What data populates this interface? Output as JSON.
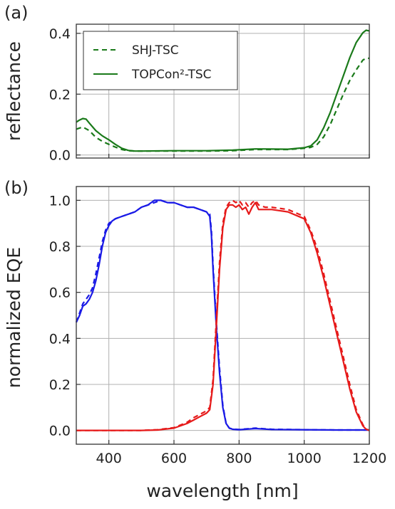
{
  "chart_data": [
    {
      "type": "line",
      "panel_label": "(a)",
      "xlabel": "",
      "ylabel": "reflectance",
      "xlim": [
        300,
        1200
      ],
      "ylim": [
        -0.01,
        0.43
      ],
      "xticks": [
        400,
        600,
        800,
        1000,
        1200
      ],
      "yticks": [
        "0.0",
        "0.2",
        "0.4"
      ],
      "ytick_values": [
        0.0,
        0.2,
        0.4
      ],
      "grid": true,
      "legend_position": "top-left",
      "series": [
        {
          "name": "SHJ-TSC",
          "style": "dashed",
          "color": "#1a7a1a",
          "x": [
            300,
            320,
            340,
            360,
            380,
            400,
            420,
            440,
            460,
            480,
            500,
            600,
            700,
            780,
            850,
            950,
            1000,
            1020,
            1040,
            1060,
            1080,
            1100,
            1120,
            1140,
            1160,
            1180,
            1190,
            1200
          ],
          "y": [
            0.085,
            0.092,
            0.08,
            0.058,
            0.045,
            0.035,
            0.026,
            0.018,
            0.014,
            0.013,
            0.013,
            0.013,
            0.013,
            0.014,
            0.018,
            0.018,
            0.022,
            0.025,
            0.035,
            0.06,
            0.1,
            0.15,
            0.2,
            0.245,
            0.28,
            0.312,
            0.318,
            0.318
          ]
        },
        {
          "name": "TOPCon²-TSC",
          "style": "solid",
          "color": "#1a7a1a",
          "x": [
            300,
            310,
            320,
            330,
            340,
            360,
            380,
            400,
            420,
            440,
            460,
            480,
            500,
            600,
            700,
            780,
            850,
            950,
            1000,
            1020,
            1040,
            1060,
            1080,
            1100,
            1120,
            1140,
            1160,
            1180,
            1190,
            1200
          ],
          "y": [
            0.108,
            0.115,
            0.12,
            0.118,
            0.105,
            0.08,
            0.063,
            0.05,
            0.035,
            0.022,
            0.015,
            0.013,
            0.013,
            0.014,
            0.014,
            0.016,
            0.02,
            0.019,
            0.024,
            0.03,
            0.05,
            0.09,
            0.14,
            0.2,
            0.26,
            0.32,
            0.37,
            0.402,
            0.41,
            0.408
          ]
        }
      ]
    },
    {
      "type": "line",
      "panel_label": "(b)",
      "xlabel": "wavelength [nm]",
      "ylabel": "normalized EQE",
      "xlim": [
        300,
        1200
      ],
      "ylim": [
        -0.06,
        1.06
      ],
      "xticks": [
        400,
        600,
        800,
        1000,
        1200
      ],
      "yticks": [
        "0.0",
        "0.2",
        "0.4",
        "0.6",
        "0.8",
        "1.0"
      ],
      "ytick_values": [
        0.0,
        0.2,
        0.4,
        0.6,
        0.8,
        1.0
      ],
      "grid": true,
      "series": [
        {
          "style": "solid",
          "color": "#1a1ae6",
          "x": [
            300,
            310,
            320,
            330,
            340,
            350,
            360,
            370,
            380,
            390,
            400,
            410,
            420,
            440,
            460,
            480,
            500,
            520,
            540,
            560,
            580,
            600,
            620,
            640,
            660,
            680,
            700,
            710,
            715,
            720,
            730,
            740,
            750,
            760,
            770,
            780,
            800,
            850,
            900,
            1000,
            1100,
            1200
          ],
          "y": [
            0.47,
            0.5,
            0.54,
            0.55,
            0.57,
            0.6,
            0.65,
            0.72,
            0.8,
            0.86,
            0.89,
            0.91,
            0.92,
            0.93,
            0.94,
            0.95,
            0.97,
            0.98,
            1.0,
            1.0,
            0.99,
            0.99,
            0.98,
            0.97,
            0.97,
            0.96,
            0.95,
            0.93,
            0.85,
            0.7,
            0.45,
            0.25,
            0.1,
            0.03,
            0.01,
            0.005,
            0.003,
            0.008,
            0.004,
            0.003,
            0.002,
            0.002
          ]
        },
        {
          "style": "dashed",
          "color": "#1a1ae6",
          "x": [
            300,
            310,
            320,
            330,
            340,
            350,
            360,
            370,
            380,
            390,
            400,
            410,
            420,
            440,
            460,
            480,
            500,
            520,
            540,
            560,
            580,
            600,
            620,
            640,
            660,
            680,
            700,
            710,
            715,
            720,
            730,
            740,
            750,
            760,
            770,
            780,
            800,
            850,
            900,
            1000,
            1100,
            1200
          ],
          "y": [
            0.47,
            0.51,
            0.55,
            0.57,
            0.59,
            0.62,
            0.68,
            0.75,
            0.82,
            0.87,
            0.9,
            0.91,
            0.92,
            0.93,
            0.94,
            0.95,
            0.97,
            0.98,
            0.99,
            1.0,
            0.99,
            0.99,
            0.98,
            0.97,
            0.97,
            0.96,
            0.95,
            0.94,
            0.87,
            0.72,
            0.47,
            0.27,
            0.11,
            0.03,
            0.01,
            0.006,
            0.004,
            0.01,
            0.005,
            0.003,
            0.002,
            0.002
          ]
        },
        {
          "style": "solid",
          "color": "#e61a1a",
          "x": [
            300,
            400,
            500,
            550,
            600,
            640,
            660,
            680,
            700,
            710,
            720,
            730,
            740,
            750,
            760,
            770,
            780,
            790,
            800,
            810,
            820,
            830,
            840,
            850,
            860,
            880,
            900,
            950,
            1000,
            1020,
            1040,
            1060,
            1080,
            1100,
            1120,
            1140,
            1160,
            1180,
            1190,
            1200
          ],
          "y": [
            0.0,
            0.0,
            0.0,
            0.002,
            0.01,
            0.03,
            0.045,
            0.06,
            0.075,
            0.09,
            0.2,
            0.45,
            0.7,
            0.88,
            0.96,
            0.98,
            0.98,
            0.97,
            0.98,
            0.96,
            0.97,
            0.94,
            0.97,
            0.99,
            0.96,
            0.96,
            0.96,
            0.95,
            0.92,
            0.86,
            0.77,
            0.66,
            0.54,
            0.42,
            0.3,
            0.18,
            0.08,
            0.02,
            0.005,
            0.0
          ]
        },
        {
          "style": "dashed",
          "color": "#e61a1a",
          "x": [
            300,
            400,
            500,
            550,
            600,
            640,
            660,
            680,
            700,
            710,
            720,
            730,
            740,
            750,
            760,
            770,
            780,
            790,
            800,
            810,
            820,
            830,
            840,
            850,
            860,
            880,
            900,
            950,
            1000,
            1020,
            1040,
            1060,
            1080,
            1100,
            1120,
            1140,
            1160,
            1180,
            1190,
            1200
          ],
          "y": [
            0.0,
            0.0,
            0.0,
            0.003,
            0.012,
            0.035,
            0.055,
            0.07,
            0.085,
            0.1,
            0.22,
            0.48,
            0.73,
            0.9,
            0.97,
            0.99,
            1.0,
            0.99,
            1.0,
            0.98,
            0.99,
            0.97,
            0.99,
            1.0,
            0.98,
            0.97,
            0.97,
            0.96,
            0.93,
            0.87,
            0.79,
            0.68,
            0.56,
            0.44,
            0.32,
            0.2,
            0.09,
            0.025,
            0.006,
            0.0
          ]
        }
      ]
    }
  ]
}
